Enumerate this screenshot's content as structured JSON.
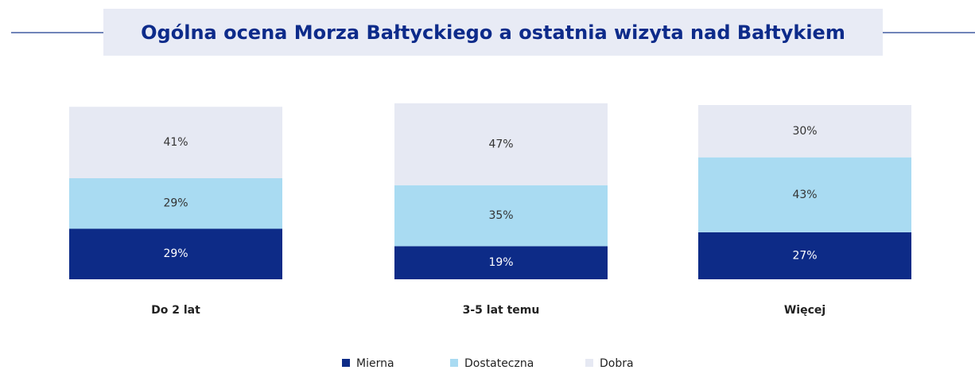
{
  "chart_data": {
    "type": "stacked-bar",
    "title": "Ogólna ocena Morza Bałtyckiego a ostatnia wizyta nad Bałtykiem",
    "categories": [
      "Do 2 lat",
      "3-5 lat temu",
      "Więcej"
    ],
    "series": [
      {
        "name": "Mierna",
        "color": "#0d2b87",
        "values": [
          29,
          19,
          27
        ],
        "value_labels": [
          "29%",
          "19%",
          "27%"
        ]
      },
      {
        "name": "Dostateczna",
        "color": "#a9dbf2",
        "values": [
          29,
          35,
          43
        ],
        "value_labels": [
          "29%",
          "35%",
          "43%"
        ]
      },
      {
        "name": "Dobra",
        "color": "#e6e9f3",
        "values": [
          41,
          47,
          30
        ],
        "value_labels": [
          "41%",
          "47%",
          "30%"
        ]
      }
    ],
    "ylim": [
      0,
      100
    ]
  }
}
